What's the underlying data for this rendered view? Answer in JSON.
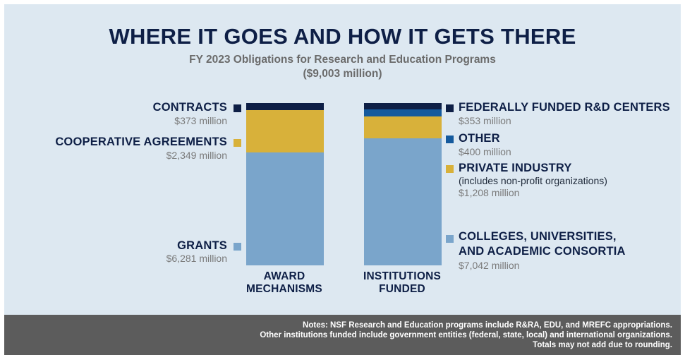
{
  "title": "WHERE IT GOES AND HOW IT GETS THERE",
  "subtitle_line1": "FY 2023 Obligations for Research and Education Programs",
  "subtitle_line2": "($9,003 million)",
  "colors": {
    "navy": "#0e1f46",
    "blue": "#155a9d",
    "gold": "#d8b13a",
    "light_blue": "#7aa5cb",
    "panel_bg": "#dde8f1",
    "footer_bg": "#5c5c5c"
  },
  "chart_data": {
    "type": "bar",
    "stacked": true,
    "categories": [
      "AWARD MECHANISMS",
      "INSTITUTIONS FUNDED"
    ],
    "unit": "million",
    "bars": [
      {
        "category": "AWARD MECHANISMS",
        "segments": [
          {
            "name": "GRANTS",
            "value": 6281,
            "value_label": "$6,281 million",
            "color": "#7aa5cb"
          },
          {
            "name": "COOPERATIVE AGREEMENTS",
            "value": 2349,
            "value_label": "$2,349 million",
            "color": "#d8b13a"
          },
          {
            "name": "CONTRACTS",
            "value": 373,
            "value_label": "$373 million",
            "color": "#0e1f46"
          }
        ]
      },
      {
        "category": "INSTITUTIONS FUNDED",
        "segments": [
          {
            "name": "COLLEGES, UNIVERSITIES, AND ACADEMIC CONSORTIA",
            "name_line1": "COLLEGES, UNIVERSITIES,",
            "name_line2": "AND ACADEMIC CONSORTIA",
            "value": 7042,
            "value_label": "$7,042 million",
            "color": "#7aa5cb"
          },
          {
            "name": "PRIVATE INDUSTRY",
            "note": "(includes non-profit organizations)",
            "value": 1208,
            "value_label": "$1,208 million",
            "color": "#d8b13a"
          },
          {
            "name": "OTHER",
            "value": 400,
            "value_label": "$400 million",
            "color": "#155a9d"
          },
          {
            "name": "FEDERALLY FUNDED R&D CENTERS",
            "value": 353,
            "value_label": "$353 million",
            "color": "#0e1f46"
          }
        ]
      }
    ],
    "axis_labels": [
      {
        "line1": "AWARD",
        "line2": "MECHANISMS"
      },
      {
        "line1": "INSTITUTIONS",
        "line2": "FUNDED"
      }
    ],
    "total": 9003
  },
  "notes": [
    "Notes: NSF Research and Education programs include R&RA, EDU, and MREFC appropriations.",
    "Other institutions funded include government entities (federal, state, local) and international organizations.",
    "Totals may not add due to rounding."
  ]
}
